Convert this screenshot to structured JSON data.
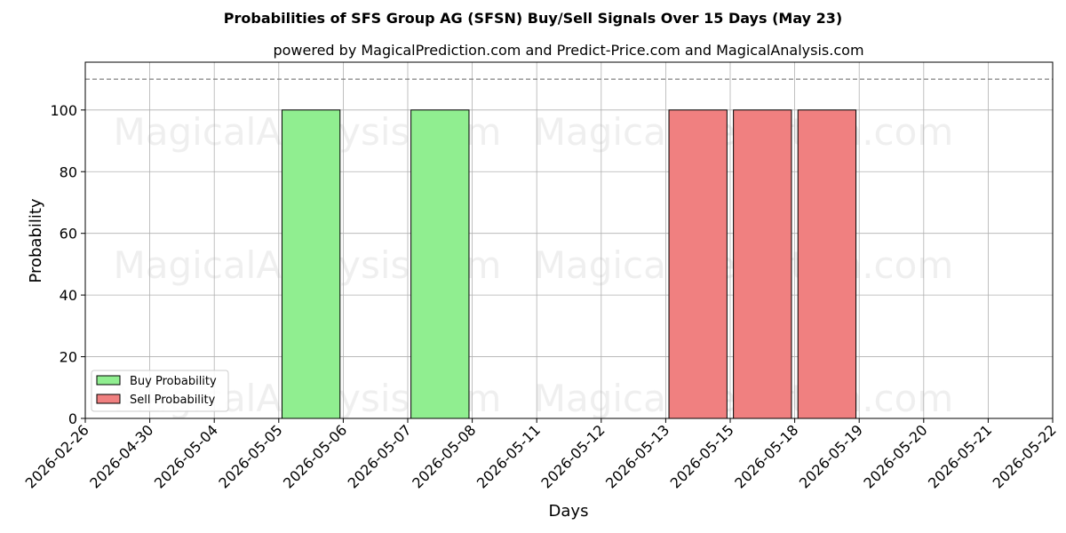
{
  "chart_data": {
    "type": "bar",
    "title": "Probabilities of SFS Group AG (SFSN) Buy/Sell Signals Over 15 Days (May 23)",
    "subtitle": "powered by MagicalPrediction.com and Predict-Price.com and MagicalAnalysis.com",
    "xlabel": "Days",
    "ylabel": "Probability",
    "categories": [
      "2026-02-26",
      "2026-04-30",
      "2026-05-04",
      "2026-05-05",
      "2026-05-06",
      "2026-05-07",
      "2026-05-08",
      "2026-05-11",
      "2026-05-12",
      "2026-05-13",
      "2026-05-15",
      "2026-05-18",
      "2026-05-19",
      "2026-05-20",
      "2026-05-21",
      "2026-05-22"
    ],
    "ylim": [
      0,
      115.5
    ],
    "yticks": [
      0,
      20,
      40,
      60,
      80,
      100
    ],
    "reference_line": 110,
    "grid": true,
    "legend_position": "lower-left",
    "series": [
      {
        "name": "Buy Probability",
        "color": "#90ee90",
        "bars": [
          {
            "x": "2026-05-06",
            "value": 100
          },
          {
            "x": "2026-05-08",
            "value": 100
          }
        ]
      },
      {
        "name": "Sell Probability",
        "color": "#f08080",
        "bars": [
          {
            "x": "2026-05-15",
            "value": 100
          },
          {
            "x": "2026-05-18",
            "value": 100
          },
          {
            "x": "2026-05-19",
            "value": 100
          }
        ]
      }
    ],
    "watermarks": [
      "MagicalAnalysis.com",
      "MagicalPrediction.com",
      "MagicalAnalysis.com",
      "MagicalPrediction.com",
      "MagicalAnalysis.com",
      "MagicalPrediction.com"
    ]
  }
}
